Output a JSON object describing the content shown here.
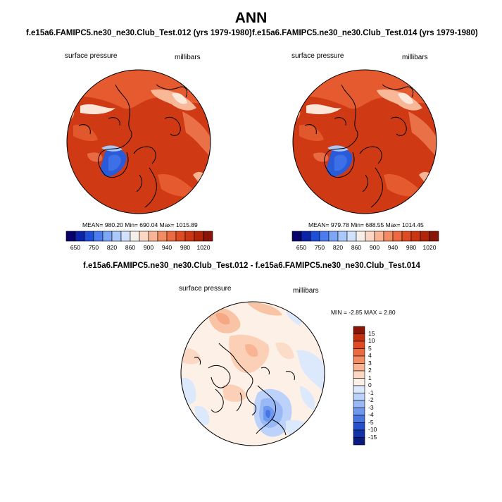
{
  "title": "ANN",
  "panels": [
    {
      "header": "f.e15a6.FAMIPC5.ne30_ne30.Club_Test.012 (yrs 1979-1980)",
      "variable": "surface pressure",
      "units": "millibars",
      "stats": "MEAN= 980.20  Min= 690.04  Max= 1015.89"
    },
    {
      "header": "f.e15a6.FAMIPC5.ne30_ne30.Club_Test.014 (yrs 1979-1980)",
      "variable": "surface pressure",
      "units": "millibars",
      "stats": "MEAN= 979.78  Min= 688.55  Max= 1014.45"
    }
  ],
  "top_colorbar": {
    "labels": [
      "650",
      "750",
      "820",
      "860",
      "900",
      "940",
      "980",
      "1020"
    ],
    "colors": [
      "#08006b",
      "#0b23a8",
      "#1f4fd8",
      "#4c7df0",
      "#7da6f5",
      "#aac8fa",
      "#d3e2fc",
      "#f6efe9",
      "#fcd8c4",
      "#f9b593",
      "#f38c63",
      "#eb6a3f",
      "#de4a22",
      "#cc3512",
      "#b02508",
      "#8a1405"
    ]
  },
  "diff": {
    "header": "f.e15a6.FAMIPC5.ne30_ne30.Club_Test.012 - f.e15a6.FAMIPC5.ne30_ne30.Club_Test.014",
    "variable": "surface pressure",
    "units": "millibars",
    "minmax": "MIN =  -2.85 MAX =   2.80"
  },
  "diff_colorbar": {
    "labels": [
      "15",
      "10",
      "5",
      "4",
      "3",
      "2",
      "1",
      "0",
      "-1",
      "-2",
      "-3",
      "-4",
      "-5",
      "-10",
      "-15"
    ],
    "colors": [
      "#8a1405",
      "#c3300e",
      "#de4a22",
      "#eb6a3f",
      "#f38c63",
      "#f9b593",
      "#fcd8c4",
      "#fdf0e6",
      "#dce8fc",
      "#bcd2fa",
      "#99b9f6",
      "#6e98ee",
      "#4776e2",
      "#2450cc",
      "#1233a8",
      "#0a1a80"
    ]
  }
}
